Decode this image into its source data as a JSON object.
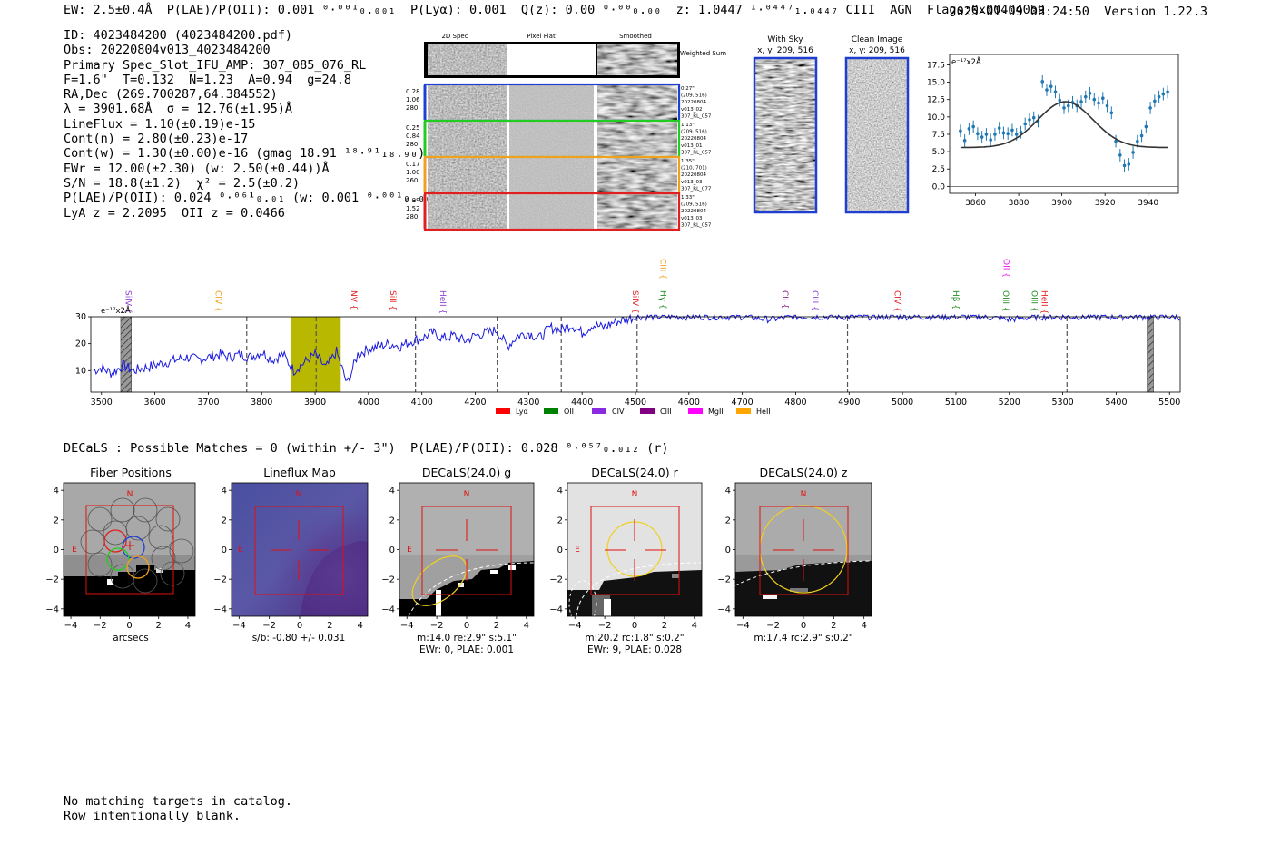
{
  "header": {
    "left": "EW: 2.5±0.4Å  P(LAE)/P(OII): 0.001 ⁰·⁰⁰¹₀.₀₀₁  P(Lyα): 0.001  Q(z): 0.00 ⁰·⁰⁰₀.₀₀  z: 1.0447 ¹·⁰⁴⁴⁷₁.₀₄₄₇ CIII  AGN  Flags:0x00404059",
    "timestamp": "2025-01-09 08:24:50",
    "version": "Version 1.22.3"
  },
  "info_lines": [
    "ID: 4023484200 (4023484200.pdf)",
    "Obs: 20220804v013_4023484200",
    "Primary Spec_Slot_IFU_AMP: 307_085_076_RL",
    "F=1.6\"  T=0.132  N=1.23  A=0.94  g=24.8",
    "RA,Dec (269.700287,64.384552)",
    "λ = 3901.68Å  σ = 12.76(±1.95)Å",
    "LineFlux = 1.10(±0.19)e-15",
    "Cont(n) = 2.80(±0.23)e-17",
    "Cont(w) = 1.30(±0.00)e-16 (gmag 18.91 ¹⁸·⁹¹₁₈.₉₀)",
    "EWr = 12.00(±2.30) (w: 2.50(±0.44))Å",
    "S/N = 18.8(±1.2)  χ² = 2.5(±0.2)",
    "P(LAE)/P(OII): 0.024 ⁰·⁰⁶¹₀.₀₁ (w: 0.001 ⁰·⁰⁰¹₀.₀₀₁)",
    "LyA z = 2.2095  OII z = 0.0466"
  ],
  "cutouts": {
    "col_headers": [
      "2D Spec",
      "Pixel Flat",
      "Smoothed"
    ],
    "weighted_label": "Weighted Sum",
    "rows": [
      {
        "vals": [
          "0.28",
          "1.06",
          "280"
        ],
        "info": [
          "0.27\"",
          "(209, 516)",
          "20220804",
          "v013_02",
          "307_RL_057"
        ],
        "color": "#1f3fd0"
      },
      {
        "vals": [
          "0.25",
          "0.84",
          "280"
        ],
        "info": [
          "1.13\"",
          "(209, 516)",
          "20220804",
          "v013_01",
          "307_RL_057"
        ],
        "color": "#22cc22"
      },
      {
        "vals": [
          "0.17",
          "1.00",
          "260"
        ],
        "info": [
          "1.35\"",
          "(210, 701)",
          "20220804",
          "v013_03",
          "307_RL_077"
        ],
        "color": "#f0a020"
      },
      {
        "vals": [
          "0.09",
          "1.52",
          "280"
        ],
        "info": [
          "1.33\"",
          "(209, 516)",
          "20220804",
          "v013_03",
          "307_RL_057"
        ],
        "color": "#e02020"
      }
    ],
    "sky_title": [
      "With Sky",
      "x, y: 209, 516"
    ],
    "clean_title": [
      "Clean Image",
      "x, y: 209, 516"
    ]
  },
  "fit_chart": {
    "unit_label": "e⁻¹⁷x2Å",
    "chart_data": {
      "type": "scatter",
      "x_ticks": [
        3860,
        3880,
        3900,
        3920,
        3940
      ],
      "y_ticks": [
        0.0,
        2.5,
        5.0,
        7.5,
        10.0,
        12.5,
        15.0,
        17.5
      ],
      "xlim": [
        3848,
        3954
      ],
      "ylim": [
        -1,
        19
      ],
      "points_x": [
        3853,
        3855,
        3857,
        3859,
        3861,
        3863,
        3865,
        3867,
        3869,
        3871,
        3873,
        3875,
        3877,
        3879,
        3881,
        3883,
        3885,
        3887,
        3889,
        3891,
        3893,
        3895,
        3897,
        3899,
        3901,
        3903,
        3905,
        3907,
        3909,
        3911,
        3913,
        3915,
        3917,
        3919,
        3921,
        3923,
        3925,
        3927,
        3929,
        3931,
        3933,
        3935,
        3937,
        3939,
        3941,
        3943,
        3945,
        3947,
        3949
      ],
      "points_y": [
        8.0,
        6.6,
        8.3,
        8.6,
        7.6,
        7.1,
        7.5,
        6.7,
        7.5,
        8.4,
        7.7,
        7.6,
        8.1,
        7.5,
        7.8,
        9.0,
        9.6,
        9.9,
        9.4,
        15.1,
        13.9,
        14.4,
        13.6,
        12.4,
        11.3,
        11.6,
        12.1,
        11.6,
        12.2,
        12.9,
        13.4,
        12.5,
        12.0,
        12.7,
        11.6,
        10.6,
        6.5,
        4.5,
        3.0,
        3.2,
        4.9,
        6.5,
        7.3,
        8.6,
        11.3,
        12.3,
        12.9,
        13.3,
        13.6
      ],
      "fit_center": 3901.68,
      "fit_sigma": 12.76,
      "fit_amp": 6.6,
      "fit_base": 5.6
    }
  },
  "spectrum": {
    "unit_label": "e⁻¹⁷x2Å",
    "chart_data": {
      "type": "line",
      "xlim": [
        3480,
        5520
      ],
      "ylim": [
        2,
        30
      ],
      "x_ticks": [
        3500,
        3600,
        3700,
        3800,
        3900,
        4000,
        4100,
        4200,
        4300,
        4400,
        4500,
        4600,
        4700,
        4800,
        4900,
        5000,
        5100,
        5200,
        5300,
        5400,
        5500
      ],
      "y_ticks": [
        10,
        20,
        30
      ],
      "dashed_lines": [
        3772,
        3902,
        4088,
        4241,
        4361,
        4503,
        4897,
        5308
      ],
      "highlight_band": [
        3855,
        3948
      ],
      "hatched_regions": [
        [
          3536,
          3556
        ],
        [
          5458,
          5470
        ]
      ],
      "anchors_x": [
        3485,
        3500,
        3520,
        3540,
        3560,
        3580,
        3600,
        3620,
        3640,
        3660,
        3680,
        3700,
        3720,
        3740,
        3760,
        3780,
        3800,
        3820,
        3840,
        3860,
        3880,
        3900,
        3920,
        3940,
        3960,
        3980,
        4000,
        4020,
        4040,
        4060,
        4080,
        4100,
        4120,
        4140,
        4160,
        4180,
        4200,
        4220,
        4240,
        4260,
        4280,
        4300,
        4320,
        4340,
        4360,
        4380,
        4400,
        4420,
        4440,
        4460,
        4480,
        4500,
        4520,
        4540,
        4560,
        4600,
        4650,
        4700,
        4750,
        4800,
        4850,
        4900,
        4950,
        5000,
        5050,
        5100,
        5150,
        5200,
        5250,
        5300,
        5350,
        5400,
        5450,
        5500,
        5520
      ],
      "anchors_y": [
        10,
        11,
        9,
        12,
        10,
        11,
        12,
        13,
        14,
        15,
        14,
        15,
        16,
        15,
        16,
        15,
        17,
        14,
        16,
        10,
        13,
        16,
        11,
        17,
        5,
        16,
        18,
        19,
        20,
        19,
        21,
        22,
        24,
        22,
        23,
        21,
        23,
        24,
        25,
        19,
        23,
        24,
        22,
        26,
        25,
        27,
        24,
        27,
        26,
        28,
        29,
        30,
        30,
        30,
        30,
        30,
        30,
        30,
        29,
        30,
        30,
        30,
        30,
        30,
        30,
        30,
        30,
        29,
        30,
        30,
        30,
        30,
        30,
        30,
        30
      ],
      "lines": [
        {
          "label": "SiIV",
          "wl": 3540,
          "color": "#8b3fd0"
        },
        {
          "label": "CIV",
          "wl": 3709,
          "color": "#f0a020"
        },
        {
          "label": "NV",
          "wl": 3963,
          "color": "#e02020"
        },
        {
          "label": "SiII",
          "wl": 4036,
          "color": "#e02020"
        },
        {
          "label": "HeII",
          "wl": 4129,
          "color": "#8b3fd0"
        },
        {
          "label": "SiIV",
          "wl": 4490,
          "color": "#e02020"
        },
        {
          "label": "CIII",
          "wl": 4542,
          "color": "#f0a020"
        },
        {
          "label": "Hγ",
          "wl": 4542,
          "color": "#228b22"
        },
        {
          "label": "CII",
          "wl": 4770,
          "color": "#8b1a8b"
        },
        {
          "label": "CIII",
          "wl": 4826,
          "color": "#8b3fd0"
        },
        {
          "label": "CIV",
          "wl": 4980,
          "color": "#e02020"
        },
        {
          "label": "Hβ",
          "wl": 5090,
          "color": "#228b22"
        },
        {
          "label": "OIII",
          "wl": 5183,
          "color": "#228b22"
        },
        {
          "label": "OII",
          "wl": 5184,
          "color": "#ee10ee"
        },
        {
          "label": "OIII",
          "wl": 5237,
          "color": "#228b22"
        },
        {
          "label": "HeII",
          "wl": 5256,
          "color": "#e02020"
        }
      ],
      "legend": [
        {
          "label": "Lyα",
          "color": "#ff0000"
        },
        {
          "label": "OII",
          "color": "#008000"
        },
        {
          "label": "CIV",
          "color": "#8a2be2"
        },
        {
          "label": "CIII",
          "color": "#800080"
        },
        {
          "label": "MgII",
          "color": "#ff00ff"
        },
        {
          "label": "HeII",
          "color": "#ffa500"
        }
      ]
    }
  },
  "decals_line": "DECaLS : Possible Matches = 0 (within +/- 3\")  P(LAE)/P(OII): 0.028 ⁰·⁰⁵⁷₀.₀₁₂ (r)",
  "panels": [
    {
      "title": "Fiber Positions",
      "caption": [
        "arcsecs"
      ]
    },
    {
      "title": "Lineflux Map",
      "caption": [
        "s/b: -0.80 +/- 0.031"
      ]
    },
    {
      "title": "DECaLS(24.0) g",
      "caption": [
        "m:14.0  re:2.9\"  s:5.1\"",
        "EWr: 0, PLAE: 0.001"
      ]
    },
    {
      "title": "DECaLS(24.0) r",
      "caption": [
        "m:20.2  rc:1.8\"  s:0.2\"",
        "EWr: 9, PLAE: 0.028"
      ]
    },
    {
      "title": "DECaLS(24.0) z",
      "caption": [
        "m:17.4  rc:2.9\"  s:0.2\""
      ]
    }
  ],
  "panel_axes": {
    "ticks": [
      -4,
      -2,
      0,
      2,
      4
    ],
    "north": "N",
    "east": "E"
  },
  "footer": [
    "No matching targets in catalog.",
    "Row intentionally blank."
  ]
}
